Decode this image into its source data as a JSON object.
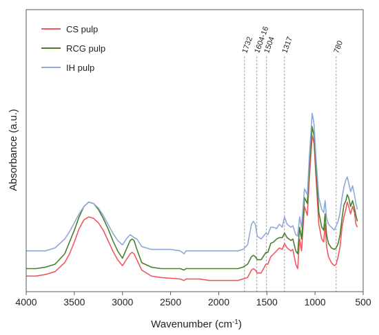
{
  "chart_data": {
    "type": "line",
    "xlabel": "Wavenumber (cm",
    "xlabel_sup": "-1",
    "xlabel_end": ")",
    "ylabel": "Absorbance (a.u.)",
    "xlim": [
      4000,
      500
    ],
    "x_ticks": [
      4000,
      3500,
      3000,
      2500,
      2000,
      1500,
      1000,
      500
    ],
    "y_ticks_shown": false,
    "grid": false,
    "legend_position": "top-left",
    "peak_markers": [
      {
        "x": 1732,
        "label": "1732"
      },
      {
        "x": 1604,
        "label": "1604-16"
      },
      {
        "x": 1504,
        "label": "1504"
      },
      {
        "x": 1317,
        "label": "1317"
      },
      {
        "x": 780,
        "label": "780"
      }
    ],
    "series": [
      {
        "name": "CS pulp",
        "color": "#f0575e",
        "points": [
          [
            4000,
            0.05
          ],
          [
            3900,
            0.05
          ],
          [
            3800,
            0.06
          ],
          [
            3700,
            0.08
          ],
          [
            3600,
            0.14
          ],
          [
            3550,
            0.2
          ],
          [
            3500,
            0.28
          ],
          [
            3450,
            0.37
          ],
          [
            3400,
            0.43
          ],
          [
            3350,
            0.45
          ],
          [
            3300,
            0.44
          ],
          [
            3250,
            0.41
          ],
          [
            3200,
            0.36
          ],
          [
            3150,
            0.29
          ],
          [
            3100,
            0.22
          ],
          [
            3050,
            0.16
          ],
          [
            3000,
            0.12
          ],
          [
            2960,
            0.16
          ],
          [
            2920,
            0.2
          ],
          [
            2900,
            0.21
          ],
          [
            2880,
            0.2
          ],
          [
            2850,
            0.16
          ],
          [
            2800,
            0.09
          ],
          [
            2700,
            0.05
          ],
          [
            2600,
            0.04
          ],
          [
            2500,
            0.035
          ],
          [
            2400,
            0.03
          ],
          [
            2360,
            0.02
          ],
          [
            2340,
            0.03
          ],
          [
            2300,
            0.03
          ],
          [
            2200,
            0.03
          ],
          [
            2100,
            0.02
          ],
          [
            2000,
            0.02
          ],
          [
            1900,
            0.02
          ],
          [
            1800,
            0.02
          ],
          [
            1750,
            0.03
          ],
          [
            1700,
            0.04
          ],
          [
            1660,
            0.09
          ],
          [
            1640,
            0.1
          ],
          [
            1620,
            0.09
          ],
          [
            1600,
            0.07
          ],
          [
            1560,
            0.07
          ],
          [
            1510,
            0.13
          ],
          [
            1490,
            0.13
          ],
          [
            1460,
            0.18
          ],
          [
            1430,
            0.2
          ],
          [
            1400,
            0.22
          ],
          [
            1370,
            0.24
          ],
          [
            1340,
            0.23
          ],
          [
            1317,
            0.27
          ],
          [
            1290,
            0.24
          ],
          [
            1250,
            0.22
          ],
          [
            1230,
            0.23
          ],
          [
            1200,
            0.13
          ],
          [
            1180,
            0.1
          ],
          [
            1160,
            0.3
          ],
          [
            1140,
            0.22
          ],
          [
            1110,
            0.52
          ],
          [
            1080,
            0.46
          ],
          [
            1060,
            0.7
          ],
          [
            1030,
            1.0
          ],
          [
            1010,
            0.95
          ],
          [
            990,
            0.72
          ],
          [
            960,
            0.4
          ],
          [
            930,
            0.3
          ],
          [
            910,
            0.28
          ],
          [
            895,
            0.4
          ],
          [
            880,
            0.25
          ],
          [
            860,
            0.18
          ],
          [
            830,
            0.14
          ],
          [
            800,
            0.12
          ],
          [
            780,
            0.13
          ],
          [
            760,
            0.18
          ],
          [
            740,
            0.25
          ],
          [
            720,
            0.38
          ],
          [
            700,
            0.45
          ],
          [
            680,
            0.5
          ],
          [
            665,
            0.55
          ],
          [
            650,
            0.52
          ],
          [
            630,
            0.47
          ],
          [
            610,
            0.52
          ],
          [
            590,
            0.48
          ],
          [
            575,
            0.4
          ],
          [
            560,
            0.38
          ]
        ]
      },
      {
        "name": "RCG pulp",
        "color": "#4a7c2c",
        "points": [
          [
            4000,
            0.1
          ],
          [
            3900,
            0.1
          ],
          [
            3800,
            0.11
          ],
          [
            3700,
            0.13
          ],
          [
            3600,
            0.2
          ],
          [
            3550,
            0.28
          ],
          [
            3500,
            0.36
          ],
          [
            3450,
            0.45
          ],
          [
            3400,
            0.52
          ],
          [
            3350,
            0.55
          ],
          [
            3300,
            0.54
          ],
          [
            3250,
            0.5
          ],
          [
            3200,
            0.44
          ],
          [
            3150,
            0.37
          ],
          [
            3100,
            0.29
          ],
          [
            3050,
            0.22
          ],
          [
            3000,
            0.17
          ],
          [
            2960,
            0.23
          ],
          [
            2920,
            0.29
          ],
          [
            2900,
            0.3
          ],
          [
            2880,
            0.29
          ],
          [
            2850,
            0.23
          ],
          [
            2800,
            0.14
          ],
          [
            2700,
            0.11
          ],
          [
            2600,
            0.1
          ],
          [
            2500,
            0.1
          ],
          [
            2400,
            0.1
          ],
          [
            2360,
            0.09
          ],
          [
            2340,
            0.1
          ],
          [
            2300,
            0.1
          ],
          [
            2200,
            0.1
          ],
          [
            2100,
            0.1
          ],
          [
            2000,
            0.1
          ],
          [
            1900,
            0.1
          ],
          [
            1800,
            0.1
          ],
          [
            1750,
            0.11
          ],
          [
            1700,
            0.13
          ],
          [
            1660,
            0.18
          ],
          [
            1640,
            0.19
          ],
          [
            1620,
            0.18
          ],
          [
            1600,
            0.16
          ],
          [
            1560,
            0.16
          ],
          [
            1510,
            0.21
          ],
          [
            1490,
            0.21
          ],
          [
            1460,
            0.27
          ],
          [
            1430,
            0.28
          ],
          [
            1400,
            0.3
          ],
          [
            1370,
            0.31
          ],
          [
            1340,
            0.31
          ],
          [
            1317,
            0.34
          ],
          [
            1290,
            0.31
          ],
          [
            1250,
            0.29
          ],
          [
            1230,
            0.3
          ],
          [
            1200,
            0.22
          ],
          [
            1180,
            0.2
          ],
          [
            1160,
            0.38
          ],
          [
            1140,
            0.3
          ],
          [
            1110,
            0.58
          ],
          [
            1080,
            0.54
          ],
          [
            1060,
            0.78
          ],
          [
            1030,
            1.06
          ],
          [
            1010,
            1.0
          ],
          [
            990,
            0.78
          ],
          [
            960,
            0.48
          ],
          [
            930,
            0.38
          ],
          [
            910,
            0.36
          ],
          [
            895,
            0.47
          ],
          [
            880,
            0.33
          ],
          [
            860,
            0.27
          ],
          [
            830,
            0.24
          ],
          [
            800,
            0.23
          ],
          [
            780,
            0.24
          ],
          [
            760,
            0.27
          ],
          [
            740,
            0.33
          ],
          [
            720,
            0.44
          ],
          [
            700,
            0.53
          ],
          [
            680,
            0.56
          ],
          [
            665,
            0.6
          ],
          [
            650,
            0.58
          ],
          [
            630,
            0.52
          ],
          [
            610,
            0.56
          ],
          [
            590,
            0.51
          ],
          [
            575,
            0.46
          ],
          [
            560,
            0.42
          ]
        ]
      },
      {
        "name": "IH pulp",
        "color": "#8ea9d6",
        "points": [
          [
            4000,
            0.22
          ],
          [
            3900,
            0.22
          ],
          [
            3800,
            0.22
          ],
          [
            3700,
            0.24
          ],
          [
            3600,
            0.3
          ],
          [
            3550,
            0.35
          ],
          [
            3500,
            0.41
          ],
          [
            3450,
            0.47
          ],
          [
            3400,
            0.52
          ],
          [
            3350,
            0.55
          ],
          [
            3300,
            0.54
          ],
          [
            3250,
            0.51
          ],
          [
            3200,
            0.46
          ],
          [
            3150,
            0.4
          ],
          [
            3100,
            0.34
          ],
          [
            3050,
            0.29
          ],
          [
            3000,
            0.26
          ],
          [
            2960,
            0.3
          ],
          [
            2920,
            0.33
          ],
          [
            2900,
            0.32
          ],
          [
            2880,
            0.31
          ],
          [
            2850,
            0.3
          ],
          [
            2800,
            0.25
          ],
          [
            2700,
            0.23
          ],
          [
            2600,
            0.23
          ],
          [
            2500,
            0.23
          ],
          [
            2400,
            0.22
          ],
          [
            2360,
            0.2
          ],
          [
            2340,
            0.22
          ],
          [
            2300,
            0.22
          ],
          [
            2200,
            0.22
          ],
          [
            2100,
            0.22
          ],
          [
            2000,
            0.22
          ],
          [
            1900,
            0.22
          ],
          [
            1800,
            0.22
          ],
          [
            1750,
            0.23
          ],
          [
            1700,
            0.26
          ],
          [
            1660,
            0.4
          ],
          [
            1640,
            0.42
          ],
          [
            1620,
            0.4
          ],
          [
            1600,
            0.32
          ],
          [
            1560,
            0.3
          ],
          [
            1510,
            0.34
          ],
          [
            1490,
            0.33
          ],
          [
            1460,
            0.38
          ],
          [
            1430,
            0.38
          ],
          [
            1400,
            0.37
          ],
          [
            1370,
            0.4
          ],
          [
            1340,
            0.38
          ],
          [
            1317,
            0.45
          ],
          [
            1290,
            0.4
          ],
          [
            1250,
            0.38
          ],
          [
            1230,
            0.39
          ],
          [
            1200,
            0.33
          ],
          [
            1180,
            0.32
          ],
          [
            1160,
            0.45
          ],
          [
            1140,
            0.38
          ],
          [
            1110,
            0.64
          ],
          [
            1080,
            0.6
          ],
          [
            1060,
            0.85
          ],
          [
            1030,
            1.15
          ],
          [
            1010,
            1.08
          ],
          [
            990,
            0.85
          ],
          [
            960,
            0.58
          ],
          [
            930,
            0.5
          ],
          [
            910,
            0.48
          ],
          [
            895,
            0.56
          ],
          [
            880,
            0.44
          ],
          [
            860,
            0.4
          ],
          [
            830,
            0.38
          ],
          [
            800,
            0.36
          ],
          [
            780,
            0.39
          ],
          [
            760,
            0.42
          ],
          [
            740,
            0.48
          ],
          [
            720,
            0.58
          ],
          [
            700,
            0.65
          ],
          [
            680,
            0.7
          ],
          [
            665,
            0.72
          ],
          [
            650,
            0.68
          ],
          [
            630,
            0.62
          ],
          [
            610,
            0.66
          ],
          [
            590,
            0.6
          ],
          [
            575,
            0.54
          ],
          [
            560,
            0.5
          ]
        ]
      }
    ]
  }
}
